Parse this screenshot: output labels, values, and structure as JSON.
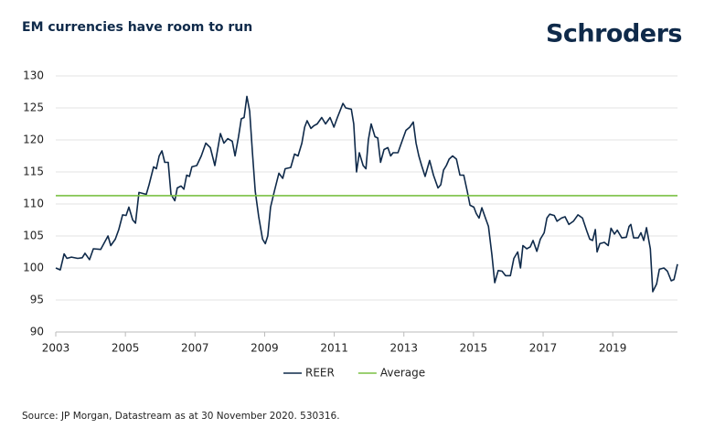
{
  "brand": "Schroders",
  "source": "Source: JP Morgan, Datastream as at 30 November 2020. 530316.",
  "chart_data": {
    "type": "line",
    "title": "EM currencies have room to run",
    "xlim": [
      2003,
      2020.86
    ],
    "xticks": [
      2003,
      2005,
      2007,
      2009,
      2011,
      2013,
      2015,
      2017,
      2019
    ],
    "ylim": [
      90,
      130
    ],
    "yticks": [
      90,
      95,
      100,
      105,
      110,
      115,
      120,
      125,
      130
    ],
    "grid": true,
    "series": [
      {
        "name": "REER",
        "color": "#0f2a4a",
        "x": [
          2003.0,
          2003.13,
          2003.24,
          2003.32,
          2003.45,
          2003.63,
          2003.76,
          2003.84,
          2003.97,
          2004.08,
          2004.29,
          2004.5,
          2004.58,
          2004.71,
          2004.81,
          2004.92,
          2005.02,
          2005.1,
          2005.21,
          2005.29,
          2005.39,
          2005.6,
          2005.68,
          2005.81,
          2005.89,
          2005.97,
          2006.05,
          2006.13,
          2006.23,
          2006.31,
          2006.42,
          2006.49,
          2006.6,
          2006.68,
          2006.76,
          2006.84,
          2006.91,
          2007.05,
          2007.18,
          2007.31,
          2007.44,
          2007.57,
          2007.65,
          2007.73,
          2007.83,
          2007.94,
          2008.07,
          2008.15,
          2008.25,
          2008.33,
          2008.41,
          2008.49,
          2008.57,
          2008.65,
          2008.73,
          2008.83,
          2008.94,
          2009.02,
          2009.09,
          2009.17,
          2009.28,
          2009.41,
          2009.52,
          2009.59,
          2009.75,
          2009.86,
          2009.96,
          2010.07,
          2010.15,
          2010.22,
          2010.33,
          2010.41,
          2010.51,
          2010.64,
          2010.75,
          2010.88,
          2010.99,
          2011.09,
          2011.25,
          2011.33,
          2011.49,
          2011.56,
          2011.64,
          2011.72,
          2011.83,
          2011.91,
          2011.98,
          2012.06,
          2012.17,
          2012.25,
          2012.33,
          2012.43,
          2012.54,
          2012.62,
          2012.69,
          2012.83,
          2012.96,
          2013.06,
          2013.17,
          2013.27,
          2013.35,
          2013.43,
          2013.51,
          2013.61,
          2013.74,
          2013.85,
          2013.98,
          2014.06,
          2014.14,
          2014.22,
          2014.3,
          2014.4,
          2014.51,
          2014.61,
          2014.72,
          2014.82,
          2014.9,
          2015.01,
          2015.08,
          2015.16,
          2015.24,
          2015.35,
          2015.43,
          2015.53,
          2015.61,
          2015.71,
          2015.82,
          2015.92,
          2016.06,
          2016.16,
          2016.27,
          2016.35,
          2016.42,
          2016.53,
          2016.63,
          2016.71,
          2016.82,
          2016.92,
          2017.03,
          2017.11,
          2017.19,
          2017.32,
          2017.4,
          2017.53,
          2017.63,
          2017.74,
          2017.87,
          2018.0,
          2018.13,
          2018.26,
          2018.34,
          2018.42,
          2018.5,
          2018.55,
          2018.63,
          2018.76,
          2018.87,
          2018.95,
          2019.05,
          2019.13,
          2019.26,
          2019.39,
          2019.47,
          2019.52,
          2019.6,
          2019.73,
          2019.81,
          2019.89,
          2019.97,
          2020.08,
          2020.15,
          2020.26,
          2020.34,
          2020.47,
          2020.57,
          2020.68,
          2020.76,
          2020.86
        ],
        "values": [
          100,
          99.7,
          102.2,
          101.5,
          101.7,
          101.5,
          101.6,
          102.3,
          101.3,
          103,
          102.9,
          105,
          103.5,
          104.5,
          106,
          108.3,
          108.2,
          109.5,
          107.5,
          107,
          111.8,
          111.5,
          113,
          115.8,
          115.5,
          117.5,
          118.3,
          116.5,
          116.5,
          111.5,
          110.5,
          112.5,
          112.8,
          112.3,
          114.5,
          114.3,
          115.8,
          116,
          117.5,
          119.5,
          118.8,
          116,
          118.5,
          121,
          119.5,
          120.2,
          119.8,
          117.5,
          120.5,
          123.3,
          123.5,
          126.8,
          124.5,
          118,
          112,
          108,
          104.5,
          103.8,
          105,
          109.5,
          112,
          114.8,
          114,
          115.5,
          115.7,
          117.8,
          117.5,
          119.5,
          122,
          123,
          121.8,
          122.2,
          122.5,
          123.5,
          122.5,
          123.5,
          122,
          123.5,
          125.7,
          125,
          124.8,
          122.5,
          115,
          118,
          116,
          115.5,
          120,
          122.5,
          120.5,
          120.3,
          116.5,
          118.5,
          118.8,
          117.5,
          118,
          118,
          120,
          121.5,
          122,
          122.8,
          119.5,
          117.5,
          116,
          114.3,
          116.8,
          114.5,
          112.5,
          113,
          115.3,
          116,
          117,
          117.5,
          117,
          114.5,
          114.5,
          112,
          109.8,
          109.5,
          108.5,
          107.8,
          109.4,
          107.7,
          106.5,
          102,
          97.7,
          99.6,
          99.5,
          98.8,
          98.8,
          101.5,
          102.5,
          100,
          103.5,
          103,
          103.3,
          104.3,
          102.6,
          104.5,
          105.5,
          107.8,
          108.4,
          108.2,
          107.3,
          107.8,
          108,
          106.8,
          107.3,
          108.3,
          107.8,
          105.7,
          104.5,
          104.3,
          106,
          102.5,
          103.8,
          104,
          103.5,
          106.2,
          105.3,
          105.9,
          104.7,
          104.8,
          106.5,
          106.8,
          104.7,
          104.7,
          105.5,
          104.3,
          106.3,
          103,
          96.3,
          97.5,
          99.8,
          100,
          99.5,
          98,
          98.2,
          100.6
        ]
      },
      {
        "name": "Average",
        "color": "#7ac143",
        "x": [
          2003,
          2020.86
        ],
        "values": [
          111.3,
          111.3
        ]
      }
    ]
  }
}
